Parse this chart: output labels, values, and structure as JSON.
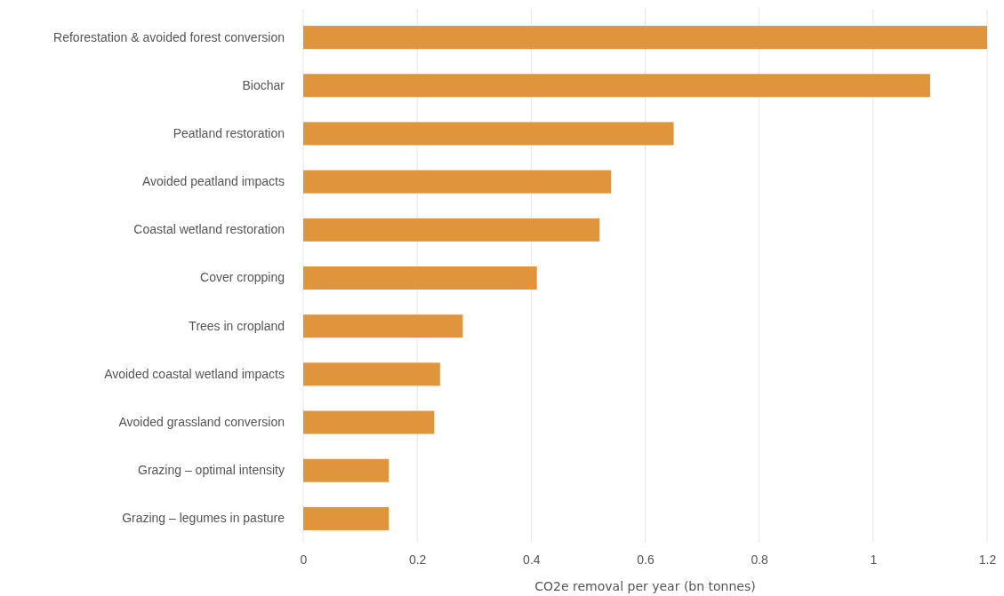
{
  "chart_data": {
    "type": "bar",
    "orientation": "horizontal",
    "xlabel": "CO2e removal per year (bn tonnes)",
    "categories": [
      "Reforestation & avoided forest conversion",
      "Biochar",
      "Peatland restoration",
      "Avoided peatland impacts",
      "Coastal wetland restoration",
      "Cover cropping",
      "Trees in cropland",
      "Avoided coastal wetland impacts",
      "Avoided grassland conversion",
      "Grazing – optimal intensity",
      "Grazing – legumes in pasture"
    ],
    "values": [
      1.2,
      1.1,
      0.65,
      0.54,
      0.52,
      0.41,
      0.28,
      0.24,
      0.23,
      0.15,
      0.15
    ],
    "color": "#e0943b",
    "xlim": [
      0,
      1.2
    ],
    "xticks": [
      0,
      0.2,
      0.4,
      0.6,
      0.8,
      1,
      1.2
    ],
    "grid": "x"
  }
}
